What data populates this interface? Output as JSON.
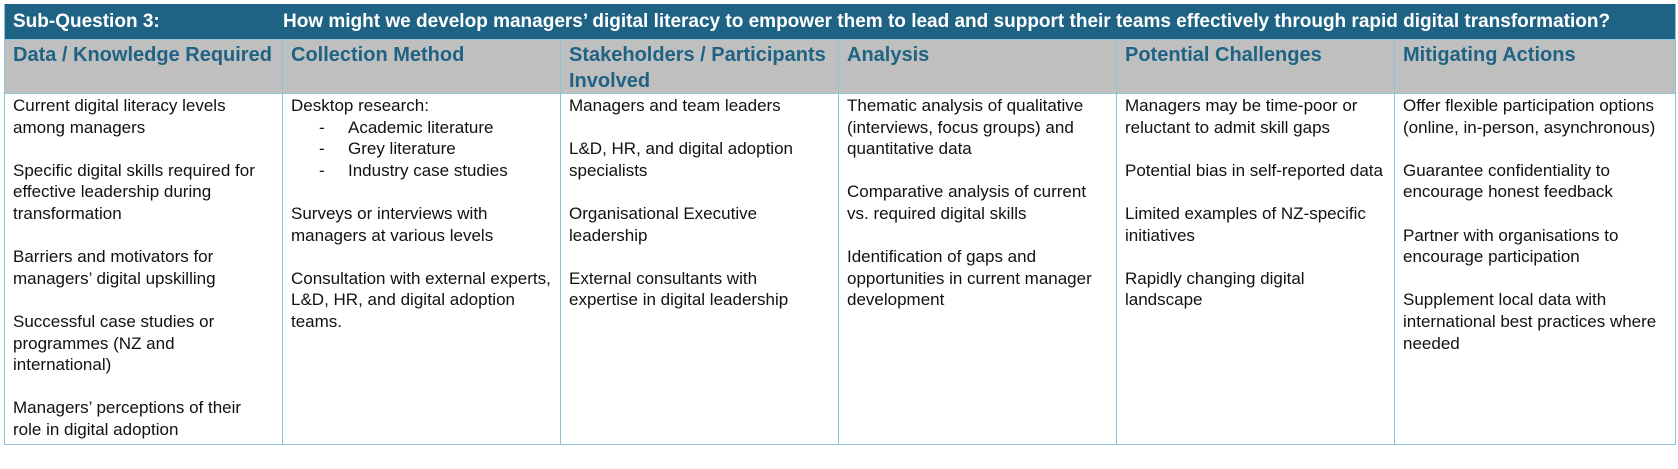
{
  "title": {
    "label": "Sub-Question 3:",
    "question": "How might we develop managers’ digital literacy to empower them to lead and support their teams effectively through rapid digital transformation?"
  },
  "headers": [
    "Data / Knowledge Required",
    "Collection Method",
    "Stakeholders / Participants Involved",
    "Analysis",
    "Potential Challenges",
    "Mitigating Actions"
  ],
  "columns": {
    "data_required": [
      "Current digital literacy levels among managers",
      "Specific digital skills required for effective leadership during transformation",
      "Barriers and motivators for managers’ digital upskilling",
      "Successful case studies or programmes (NZ and international)",
      "Managers’ perceptions of their role in digital adoption"
    ],
    "collection_method": {
      "intro": "Desktop research:",
      "bullet_marker": "-",
      "bullets": [
        "Academic literature",
        "Grey literature",
        "Industry case studies"
      ],
      "items": [
        "Surveys or interviews with managers at various levels",
        "Consultation with external experts, L&D, HR, and digital adoption teams."
      ]
    },
    "stakeholders": [
      "Managers and team leaders",
      "L&D, HR, and digital adoption specialists",
      "Organisational Executive leadership",
      "External consultants with expertise in digital leadership"
    ],
    "analysis": [
      "Thematic analysis of qualitative (interviews, focus groups) and quantitative data",
      "Comparative analysis of current vs. required digital skills",
      "Identification of gaps and opportunities in current manager development"
    ],
    "challenges": [
      "Managers may be time-poor or reluctant to admit skill gaps",
      "Potential bias in self-reported data",
      "Limited examples of NZ-specific initiatives",
      "Rapidly changing digital landscape"
    ],
    "mitigations": [
      "Offer flexible participation options (online, in-person, asynchronous)",
      "Guarantee confidentiality to encourage honest feedback",
      "Partner with organisations to encourage participation",
      "Supplement local data with international best practices where needed"
    ]
  }
}
